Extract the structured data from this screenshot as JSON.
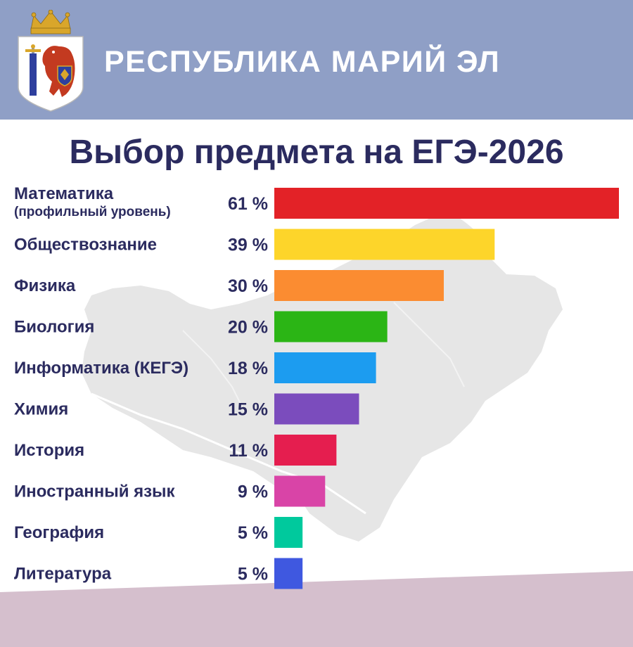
{
  "header": {
    "region_name": "РЕСПУБЛИКА МАРИЙ ЭЛ",
    "emblem_icon": "coat-of-arms-mari-el-icon",
    "background_color": "#8f9fc6"
  },
  "background": {
    "map_icon": "mari-el-map-silhouette",
    "map_color": "#e6e6e6",
    "footer_color": "#d5bfcd"
  },
  "chart_data": {
    "type": "bar",
    "orientation": "horizontal",
    "title": "Выбор предмета на ЕГЭ-2026",
    "categories": [
      "Математика",
      "Обществознание",
      "Физика",
      "Биология",
      "Информатика (КЕГЭ)",
      "Химия",
      "История",
      "Иностранный язык",
      "География",
      "Литература"
    ],
    "sublabels": [
      "(профильный уровень)",
      "",
      "",
      "",
      "",
      "",
      "",
      "",
      "",
      ""
    ],
    "values": [
      61,
      39,
      30,
      20,
      18,
      15,
      11,
      9,
      5,
      5
    ],
    "value_labels": [
      "61 %",
      "39 %",
      "30 %",
      "20 %",
      "18 %",
      "15 %",
      "11 %",
      "9 %",
      "5 %",
      "5 %"
    ],
    "unit": "%",
    "xlim": [
      0,
      61
    ],
    "grid": false,
    "legend": "none",
    "colors": [
      "#e32227",
      "#fdd52a",
      "#fb8c31",
      "#2bb515",
      "#1c9cf0",
      "#7b4cbd",
      "#e51e4f",
      "#d944a7",
      "#00c99d",
      "#3f58e0"
    ]
  }
}
